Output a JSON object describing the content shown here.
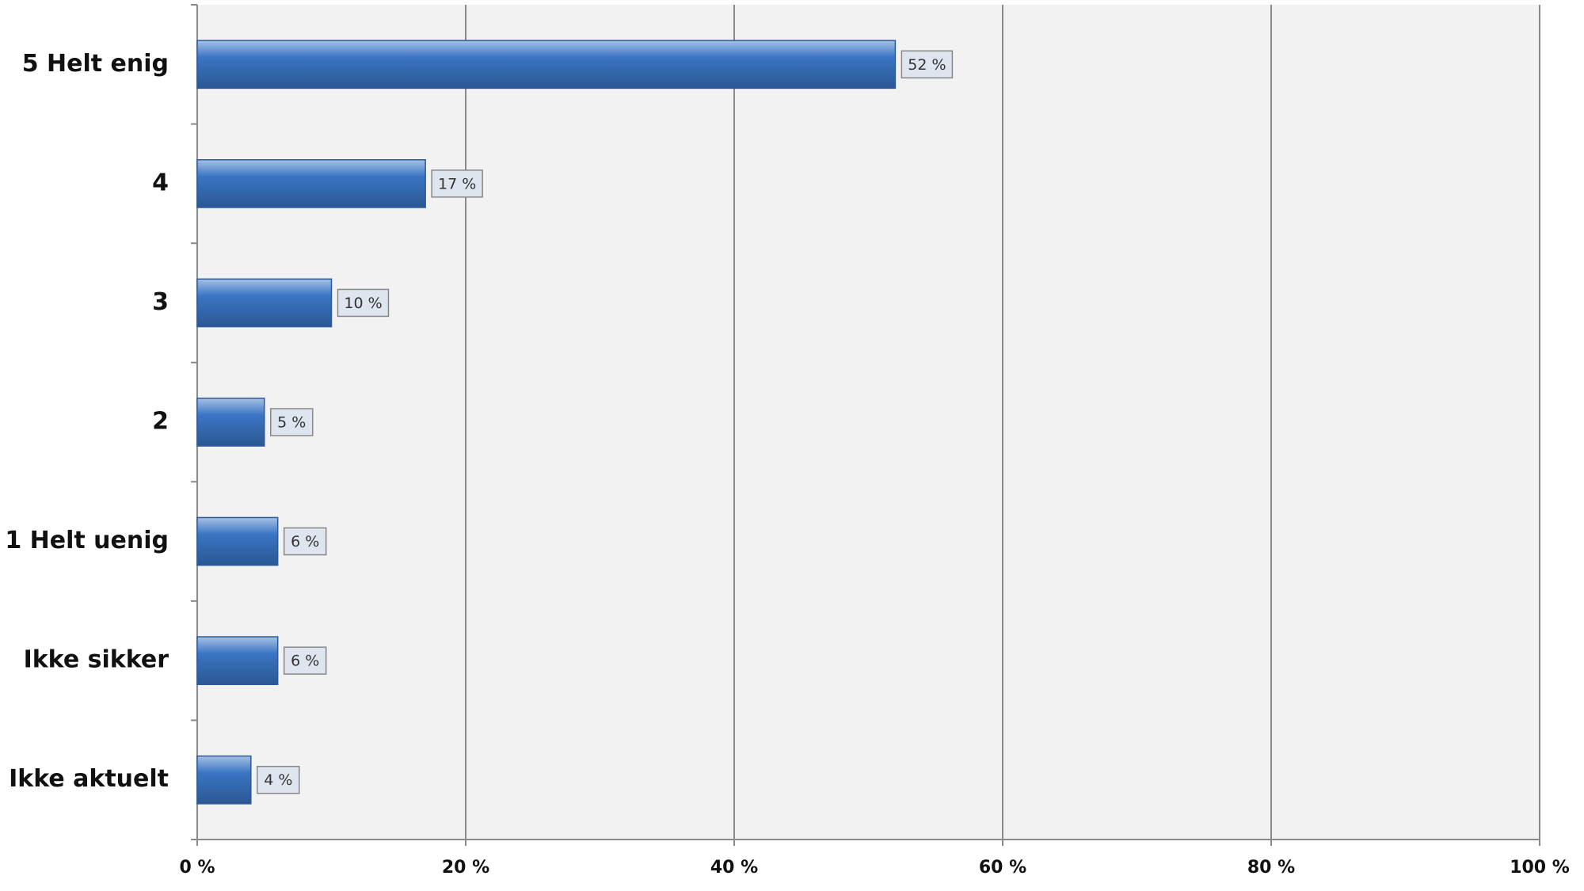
{
  "chart_data": {
    "type": "bar",
    "orientation": "horizontal",
    "categories": [
      "5 Helt enig",
      "4",
      "3",
      "2",
      "1 Helt uenig",
      "Ikke sikker",
      "Ikke aktuelt"
    ],
    "values": [
      52,
      17,
      10,
      5,
      6,
      6,
      4
    ],
    "value_labels": [
      "52 %",
      "17 %",
      "10 %",
      "5 %",
      "6 %",
      "6 %",
      "4 %"
    ],
    "color": "#3a75c4",
    "xlim": [
      0,
      100
    ],
    "xticks": [
      {
        "value": 0,
        "label": "0 %"
      },
      {
        "value": 20,
        "label": "20 %"
      },
      {
        "value": 40,
        "label": "40 %"
      },
      {
        "value": 60,
        "label": "60 %"
      },
      {
        "value": 80,
        "label": "80 %"
      },
      {
        "value": 100,
        "label": "100 %"
      }
    ],
    "grid": true
  }
}
